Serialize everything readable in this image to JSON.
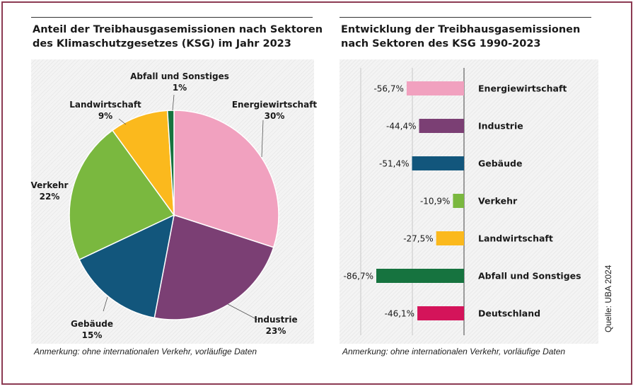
{
  "left_panel": {
    "title_line1": "Anteil der Treibhausgasemissionen  nach Sektoren",
    "title_line2": "des Klimaschutzgesetzes (KSG) im Jahr 2023",
    "note": "Anmerkung: ohne internationalen Verkehr, vorläufige Daten"
  },
  "right_panel": {
    "title_line1": "Entwicklung der Treibhausgasemissionen",
    "title_line2": "nach Sektoren des KSG 1990-2023",
    "note": "Anmerkung: ohne internationalen Verkehr, vorläufige Daten"
  },
  "source": "Quelle: UBA 2024",
  "chart_data": [
    {
      "type": "pie",
      "title": "Anteil der Treibhausgasemissionen  nach Sektoren des Klimaschutzgesetzes (KSG) im Jahr 2023",
      "slices": [
        {
          "name": "Energiewirtschaft",
          "value": 30,
          "label": "30%",
          "color": "#f1a1bf"
        },
        {
          "name": "Industrie",
          "value": 23,
          "label": "23%",
          "color": "#7b3f74"
        },
        {
          "name": "Gebäude",
          "value": 15,
          "label": "15%",
          "color": "#12567c"
        },
        {
          "name": "Verkehr",
          "value": 22,
          "label": "22%",
          "color": "#7ab83f"
        },
        {
          "name": "Landwirtschaft",
          "value": 9,
          "label": "9%",
          "color": "#fbb91d"
        },
        {
          "name": "Abfall und Sonstiges",
          "value": 1,
          "label": "1%",
          "color": "#16733f"
        }
      ]
    },
    {
      "type": "bar",
      "orientation": "horizontal",
      "title": "Entwicklung der Treibhausgasemissionen nach Sektoren des KSG 1990-2023",
      "categories": [
        "Energiewirtschaft",
        "Industrie",
        "Gebäude",
        "Verkehr",
        "Landwirtschaft",
        "Abfall und Sonstiges",
        "Deutschland"
      ],
      "values": [
        -56.7,
        -44.4,
        -51.4,
        -10.9,
        -27.5,
        -86.7,
        -46.1
      ],
      "value_labels": [
        "-56,7%",
        "-44,4%",
        "-51,4%",
        "-10,9%",
        "-27,5%",
        "-86,7%",
        "-46,1%"
      ],
      "colors": [
        "#f1a1bf",
        "#7b3f74",
        "#12567c",
        "#7ab83f",
        "#fbb91d",
        "#16733f",
        "#d4145a"
      ],
      "xlim": [
        -100,
        0
      ]
    }
  ]
}
